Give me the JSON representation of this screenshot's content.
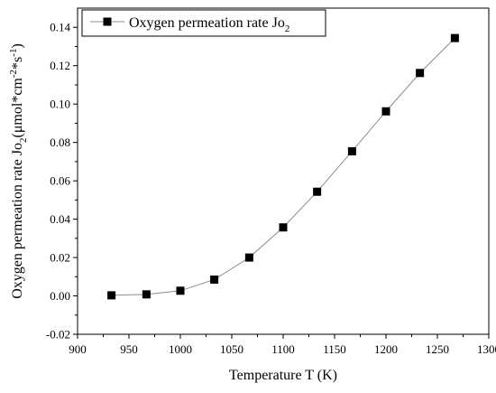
{
  "chart_data": {
    "type": "line",
    "title": "",
    "xlabel": "Temperature T (K)",
    "ylabel_main": "Oxygen permeation rate Jo",
    "ylabel_sub": "2",
    "ylabel_units": "(μmol*cm",
    "ylabel_exp1": "-2",
    "ylabel_mid": "*s",
    "ylabel_exp2": "-1",
    "ylabel_close": ")",
    "xlim": [
      900,
      1300
    ],
    "ylim": [
      -0.02,
      0.15
    ],
    "xticks": [
      900,
      950,
      1000,
      1050,
      1100,
      1150,
      1200,
      1250,
      1300
    ],
    "yticks": [
      -0.02,
      0.0,
      0.02,
      0.04,
      0.06,
      0.08,
      0.1,
      0.12,
      0.14
    ],
    "ytick_labels": [
      "-0.02",
      "0.00",
      "0.02",
      "0.04",
      "0.06",
      "0.08",
      "0.10",
      "0.12",
      "0.14"
    ],
    "grid": false,
    "legend_position": "top-left",
    "series": [
      {
        "name_main": "Oxygen permeation rate Jo",
        "name_sub": "2",
        "marker": "square",
        "color": "#000000",
        "line_color": "#8c8c8c",
        "x": [
          933,
          967,
          1000,
          1033,
          1067,
          1100,
          1133,
          1167,
          1200,
          1233,
          1267
        ],
        "y": [
          0.0003,
          0.0008,
          0.0027,
          0.0085,
          0.02,
          0.0357,
          0.0543,
          0.0754,
          0.0962,
          0.1162,
          0.1344
        ]
      }
    ]
  }
}
